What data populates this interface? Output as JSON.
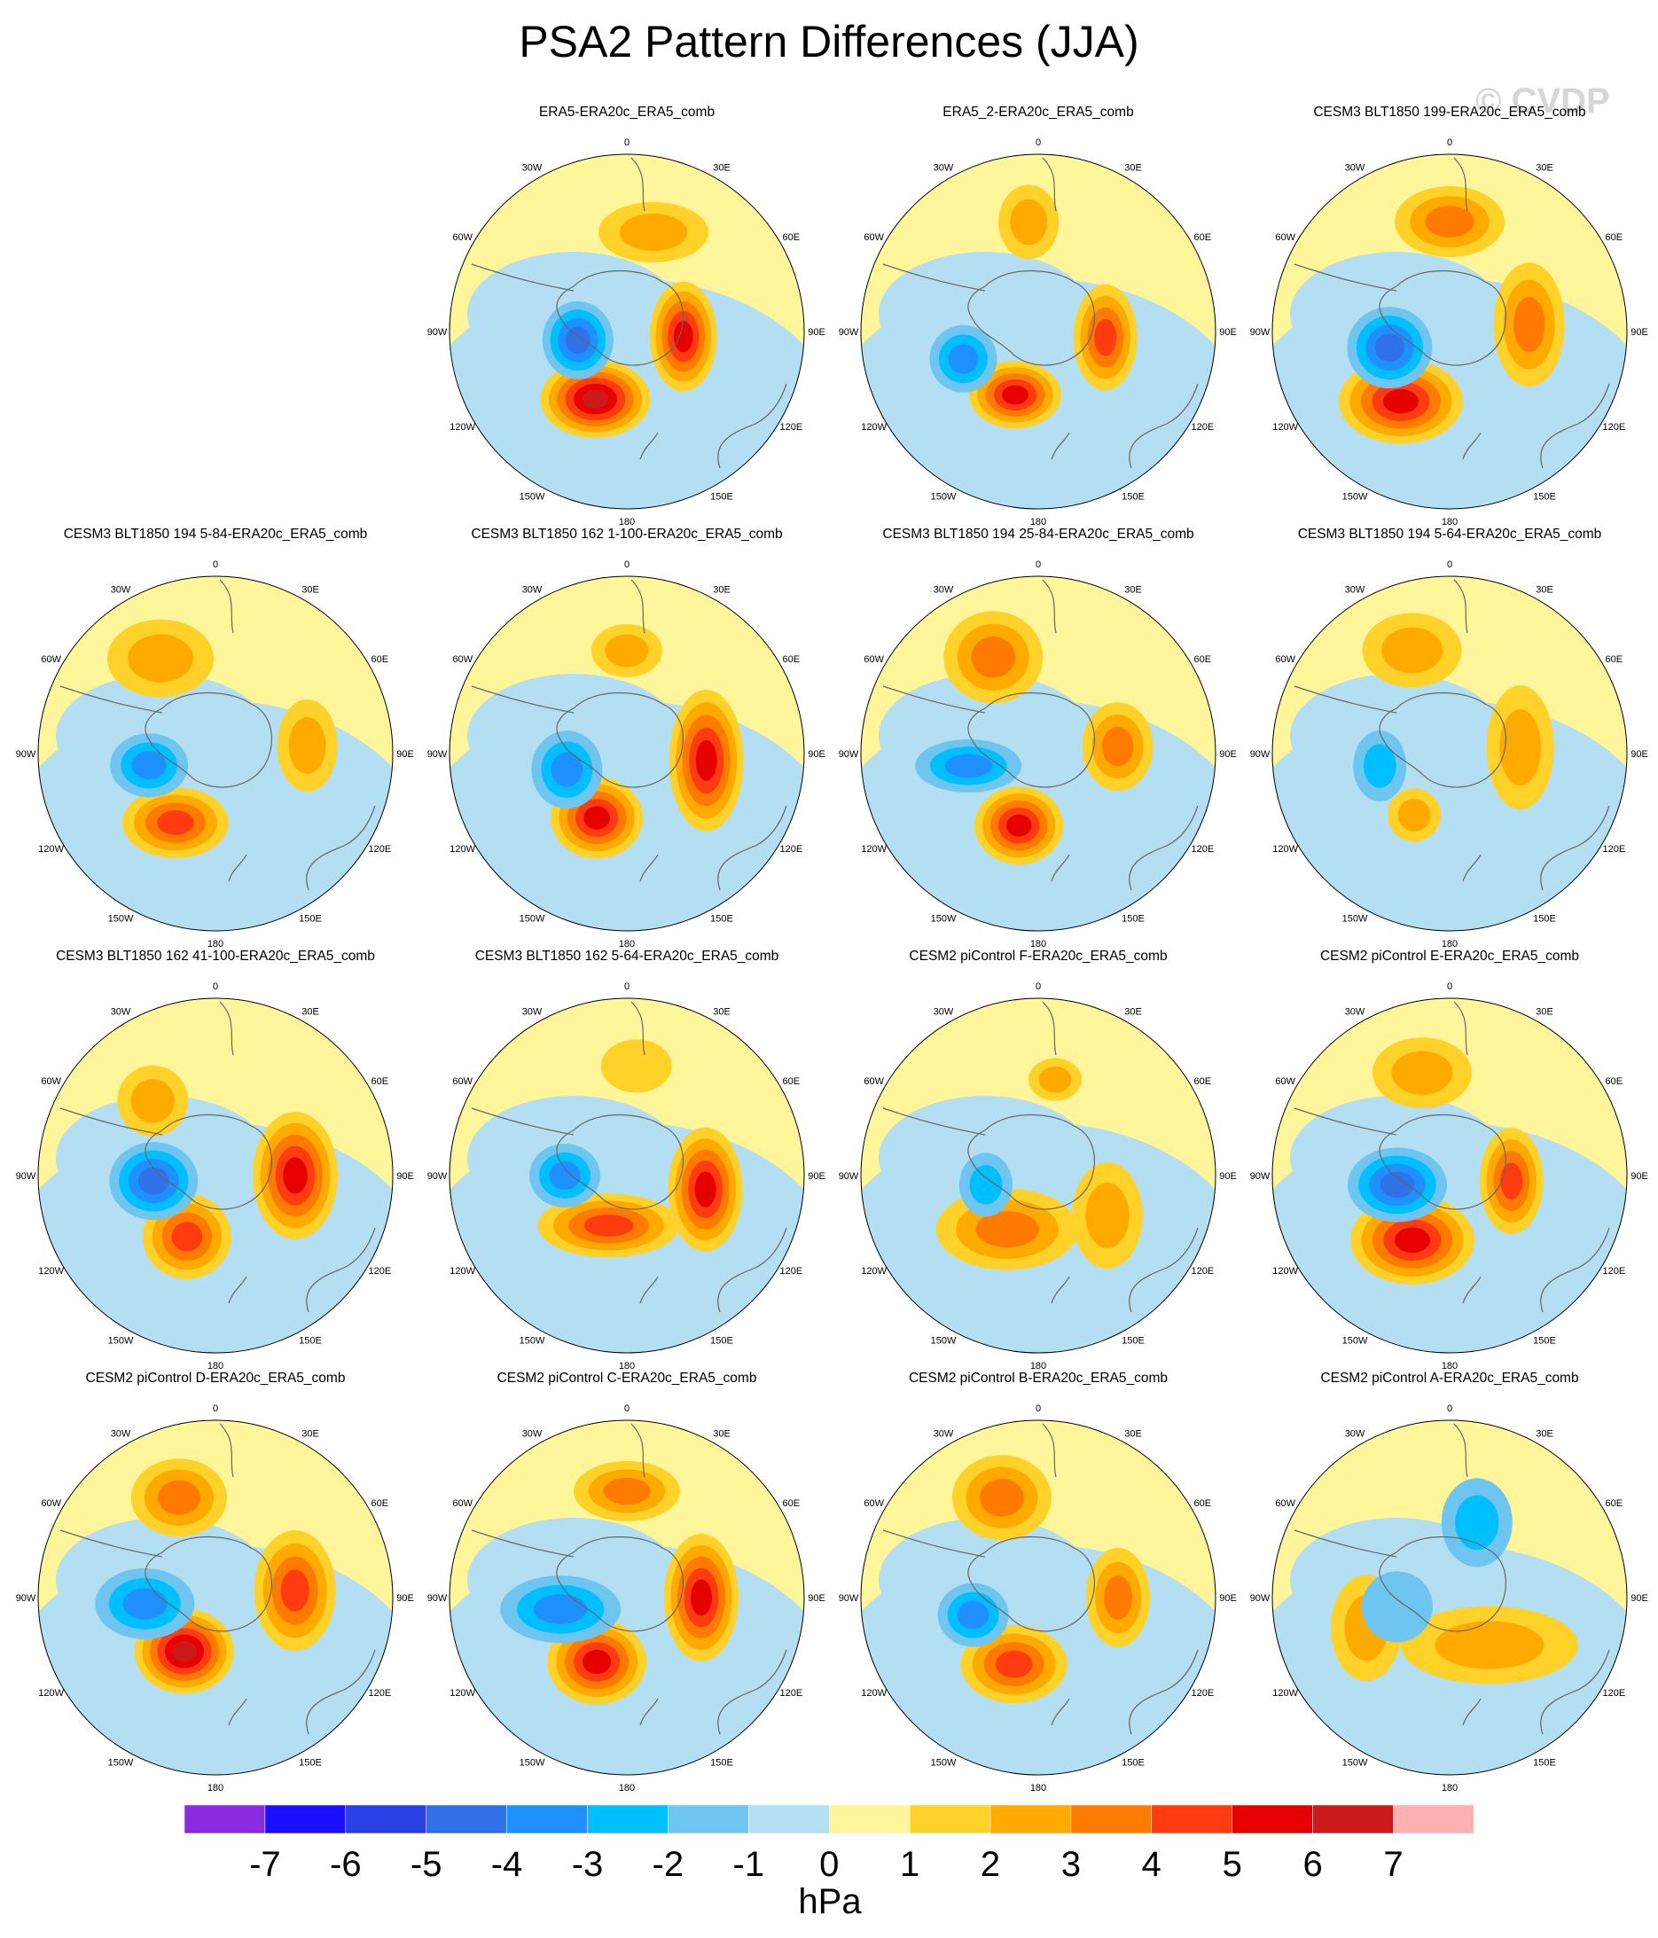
{
  "title": "PSA2 Pattern Differences (JJA)",
  "watermark": "© CVDP",
  "longitude_labels": [
    "0",
    "30E",
    "60E",
    "90E",
    "120E",
    "150E",
    "180",
    "150W",
    "120W",
    "90W",
    "60W",
    "30W"
  ],
  "colorbar": {
    "unit": "hPa",
    "tick_labels": [
      "-7",
      "-6",
      "-5",
      "-4",
      "-3",
      "-2",
      "-1",
      "0",
      "1",
      "2",
      "3",
      "4",
      "5",
      "6",
      "7"
    ],
    "colors": [
      "#8a2be2",
      "#1a10ff",
      "#2b40e6",
      "#3070e8",
      "#1e90ff",
      "#00bfff",
      "#6ec6f0",
      "#b4def2",
      "#fff59a",
      "#ffd22a",
      "#ffaa00",
      "#ff7a00",
      "#ff3b10",
      "#e60000",
      "#cc1a1a",
      "#ffb0b0"
    ]
  },
  "panels": [
    {
      "title": "ERA5-ERA20c_ERA5_comb"
    },
    {
      "title": "ERA5_2-ERA20c_ERA5_comb"
    },
    {
      "title": "CESM3 BLT1850 199-ERA20c_ERA5_comb"
    },
    {
      "title": "CESM3 BLT1850 194 5-84-ERA20c_ERA5_comb"
    },
    {
      "title": "CESM3 BLT1850 162 1-100-ERA20c_ERA5_comb"
    },
    {
      "title": "CESM3 BLT1850 194 25-84-ERA20c_ERA5_comb"
    },
    {
      "title": "CESM3 BLT1850 194 5-64-ERA20c_ERA5_comb"
    },
    {
      "title": "CESM3 BLT1850 162 41-100-ERA20c_ERA5_comb"
    },
    {
      "title": "CESM3 BLT1850 162 5-64-ERA20c_ERA5_comb"
    },
    {
      "title": "CESM2 piControl F-ERA20c_ERA5_comb"
    },
    {
      "title": "CESM2 piControl E-ERA20c_ERA5_comb"
    },
    {
      "title": "CESM2 piControl D-ERA20c_ERA5_comb"
    },
    {
      "title": "CESM2 piControl C-ERA20c_ERA5_comb"
    },
    {
      "title": "CESM2 piControl B-ERA20c_ERA5_comb"
    },
    {
      "title": "CESM2 piControl A-ERA20c_ERA5_comb"
    }
  ]
}
